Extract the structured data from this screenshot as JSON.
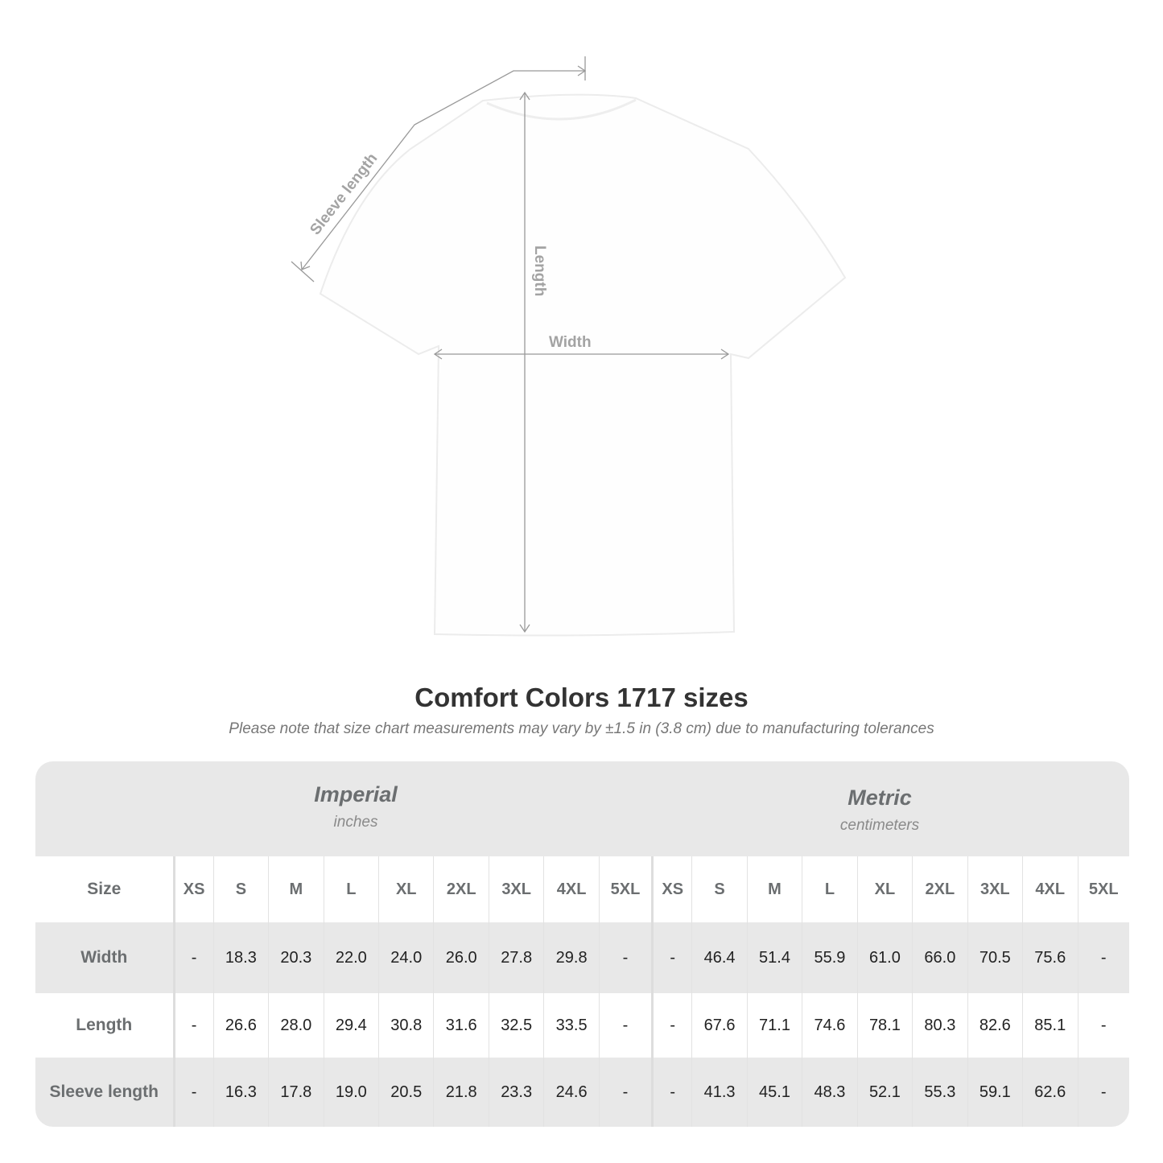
{
  "diagram": {
    "sleeve_label": "Sleeve length",
    "length_label": "Length",
    "width_label": "Width"
  },
  "title": "Comfort Colors 1717 sizes",
  "note": "Please note that size chart measurements may vary by ±1.5 in (3.8 cm) due to manufacturing tolerances",
  "imperial": {
    "name": "Imperial",
    "unit": "inches"
  },
  "metric": {
    "name": "Metric",
    "unit": "centimeters"
  },
  "table": {
    "size_label": "Size",
    "sizes": [
      "XS",
      "S",
      "M",
      "L",
      "XL",
      "2XL",
      "3XL",
      "4XL",
      "5XL"
    ],
    "rows": [
      {
        "label": "Width",
        "imperial": [
          "-",
          "18.3",
          "20.3",
          "22.0",
          "24.0",
          "26.0",
          "27.8",
          "29.8",
          "-"
        ],
        "metric": [
          "-",
          "46.4",
          "51.4",
          "55.9",
          "61.0",
          "66.0",
          "70.5",
          "75.6",
          "-"
        ]
      },
      {
        "label": "Length",
        "imperial": [
          "-",
          "26.6",
          "28.0",
          "29.4",
          "30.8",
          "31.6",
          "32.5",
          "33.5",
          "-"
        ],
        "metric": [
          "-",
          "67.6",
          "71.1",
          "74.6",
          "78.1",
          "80.3",
          "82.6",
          "85.1",
          "-"
        ]
      },
      {
        "label": "Sleeve length",
        "imperial": [
          "-",
          "16.3",
          "17.8",
          "19.0",
          "20.5",
          "21.8",
          "23.3",
          "24.6",
          "-"
        ],
        "metric": [
          "-",
          "41.3",
          "45.1",
          "48.3",
          "52.1",
          "55.3",
          "59.1",
          "62.6",
          "-"
        ]
      }
    ]
  }
}
